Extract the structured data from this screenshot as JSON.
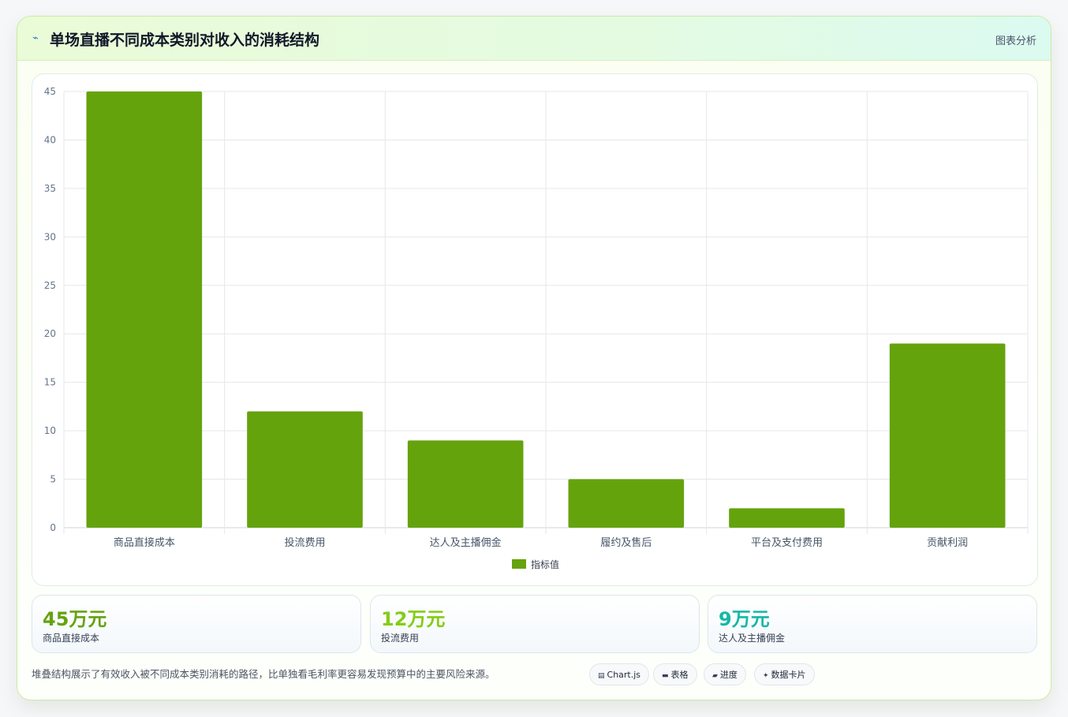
{
  "header": {
    "icon": "chart-line-icon",
    "title": "单场直播不同成本类别对收入的消耗结构",
    "link_label": "图表分析"
  },
  "chart_data": {
    "type": "bar",
    "categories": [
      "商品直接成本",
      "投流费用",
      "达人及主播佣金",
      "履约及售后",
      "平台及支付费用",
      "贡献利润"
    ],
    "series": [
      {
        "name": "指标值",
        "values": [
          45,
          12,
          9,
          5,
          2,
          19
        ],
        "color": "#65a30d"
      }
    ],
    "ylim": [
      0,
      45
    ],
    "yticks": [
      0,
      5,
      10,
      15,
      20,
      25,
      30,
      35,
      40,
      45
    ],
    "grid": true,
    "legend": "bottom-center",
    "title": "",
    "xlabel": "",
    "ylabel": ""
  },
  "stats": [
    {
      "value": "45万元",
      "label": "商品直接成本",
      "color": "#65a30d"
    },
    {
      "value": "12万元",
      "label": "投流费用",
      "color": "#84cc16"
    },
    {
      "value": "9万元",
      "label": "达人及主播佣金",
      "color": "#14b8a6"
    }
  ],
  "footnote": "堆叠结构展示了有效收入被不同成本类别消耗的路径，比单独看毛利率更容易发现预算中的主要风险来源。",
  "tags": [
    {
      "icon": "chart-icon",
      "glyph": "▤",
      "label": "Chart.js"
    },
    {
      "icon": "table-icon",
      "glyph": "▬",
      "label": "表格"
    },
    {
      "icon": "progress-icon",
      "glyph": "▰",
      "label": "进度"
    },
    {
      "icon": "data-card-icon",
      "glyph": "✦",
      "label": "数据卡片"
    }
  ]
}
